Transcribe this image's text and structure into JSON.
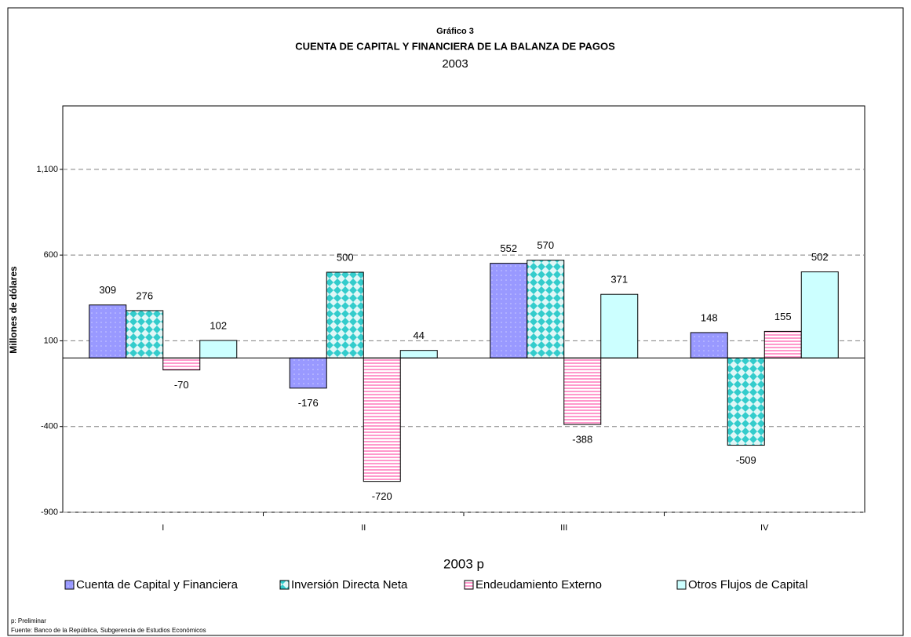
{
  "chart_data": {
    "type": "bar",
    "title": "Gráfico 3",
    "subtitle": "CUENTA DE CAPITAL Y FINANCIERA DE LA BALANZA DE PAGOS",
    "year": "2003",
    "y_label": "Millones de dólares",
    "x_label": "2003 p",
    "categories": [
      "I",
      "II",
      "III",
      "IV"
    ],
    "series": [
      {
        "name": "Cuenta de Capital y Financiera",
        "color": "#9999ff",
        "values": [
          309,
          -176,
          552,
          148
        ]
      },
      {
        "name": "Inversión Directa Neta",
        "color": "#33cccc",
        "values": [
          276,
          500,
          570,
          -509
        ]
      },
      {
        "name": "Endeudamiento Externo",
        "color": "#ff99cc",
        "values": [
          -70,
          -720,
          -388,
          155
        ]
      },
      {
        "name": "Otros Flujos de Capital",
        "color": "#ccffff",
        "values": [
          102,
          44,
          371,
          502
        ]
      }
    ],
    "ylim": [
      -900,
      1470
    ],
    "yticks": [
      -900,
      -400,
      100,
      600,
      {
        "value": 1100,
        "label": "1,100"
      }
    ],
    "grid": true,
    "legend": "bottom",
    "notes": [
      "p: Preliminar",
      "Fuente: Banco de la República, Subgerencia de Estudios Económicos"
    ]
  }
}
